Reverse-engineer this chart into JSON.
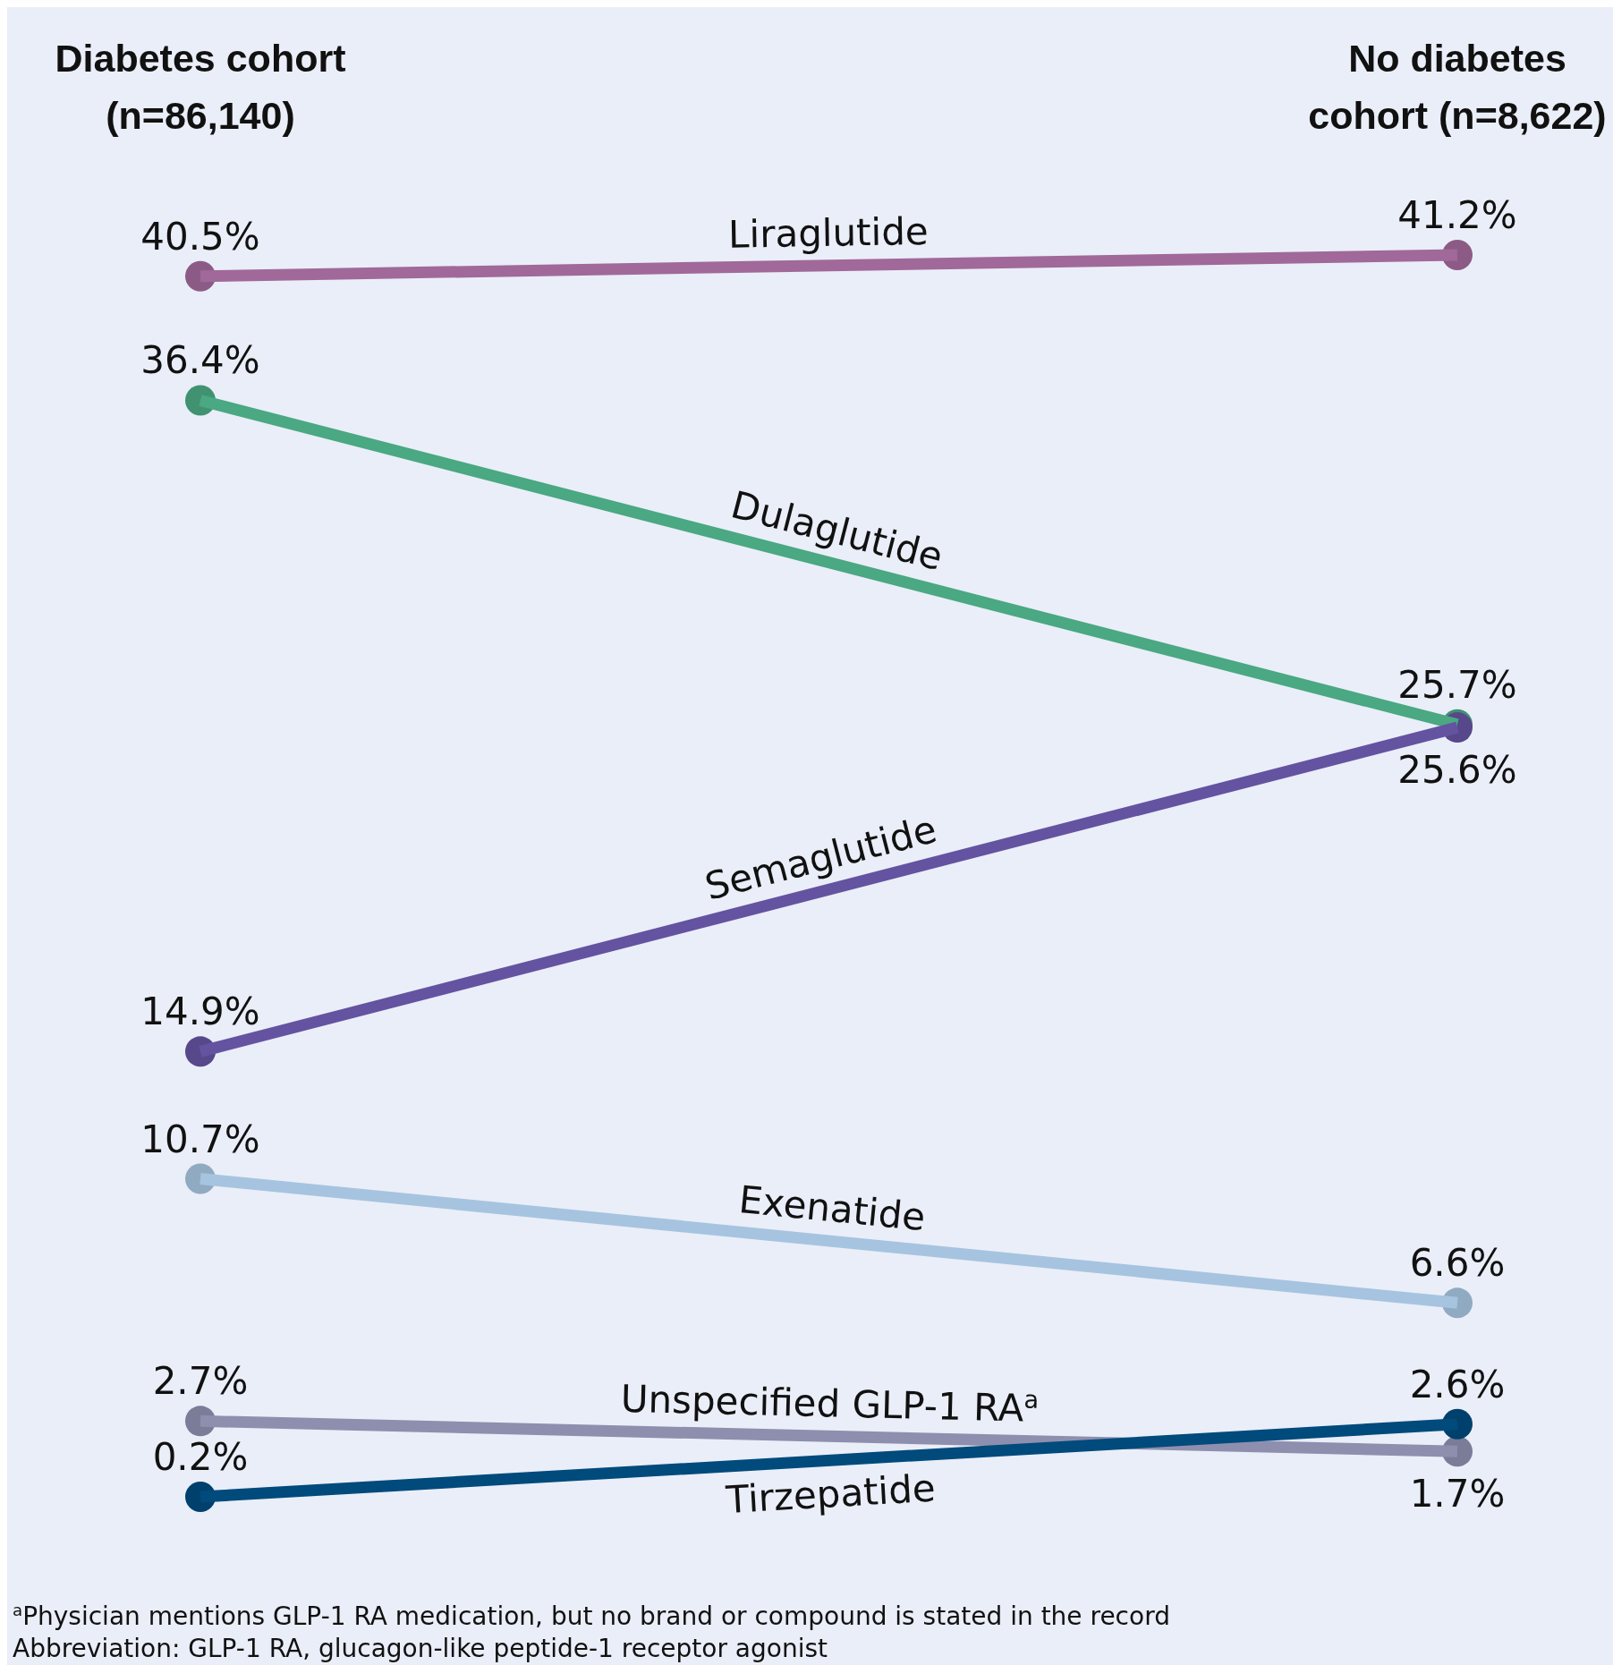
{
  "chart_data": {
    "type": "line",
    "categories": [
      "Diabetes cohort (n=86,140)",
      "No diabetes cohort (n=8,622)"
    ],
    "series": [
      {
        "name": "Liraglutide",
        "color": "#a0699a",
        "values": [
          40.5,
          41.2
        ],
        "value_labels": [
          "40.5%",
          "41.2%"
        ]
      },
      {
        "name": "Dulaglutide",
        "color": "#4aa882",
        "values": [
          36.4,
          25.7
        ],
        "value_labels": [
          "36.4%",
          "25.7%"
        ]
      },
      {
        "name": "Semaglutide",
        "color": "#6453a0",
        "values": [
          14.9,
          25.6
        ],
        "value_labels": [
          "14.9%",
          "25.6%"
        ]
      },
      {
        "name": "Exenatide",
        "color": "#a6c4e0",
        "values": [
          10.7,
          6.6
        ],
        "value_labels": [
          "10.7%",
          "6.6%"
        ]
      },
      {
        "name": "Unspecified GLP-1 RA$^{a}$",
        "color": "#8e8fae",
        "values": [
          2.7,
          1.7
        ],
        "value_labels": [
          "2.7%",
          "1.7%"
        ]
      },
      {
        "name": "Tirzepatide",
        "color": "#004a7c",
        "values": [
          0.2,
          2.6
        ],
        "value_labels": [
          "0.2%",
          "2.6%"
        ]
      }
    ],
    "marker": "circle",
    "annotations": [
      "$^{a}$Physician mentions GLP-1 RA medication, but no brand or compound is stated in the record",
      "Abbreviation: GLP-1 RA, glucagon-like peptide-1 receptor agonist"
    ]
  }
}
